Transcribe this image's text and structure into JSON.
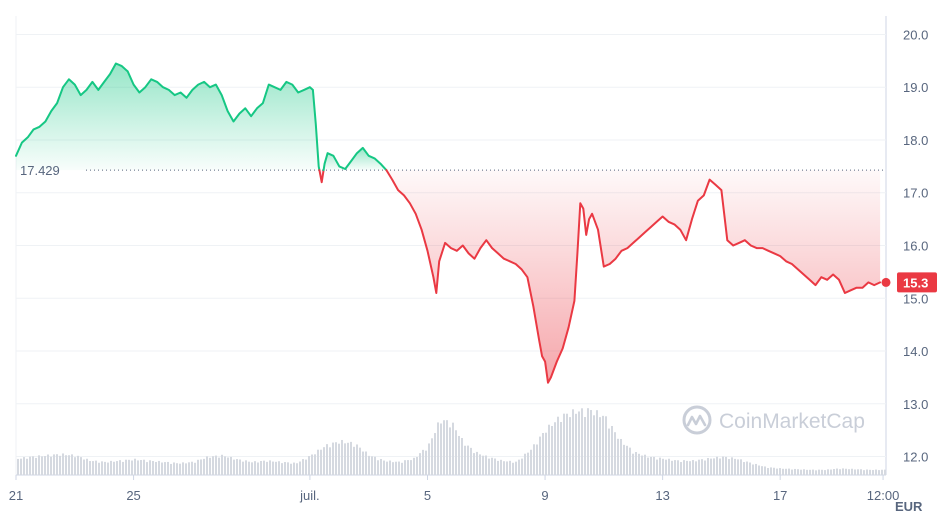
{
  "chart_data": {
    "type": "line",
    "unit": "EUR",
    "y_ticks": [
      "20.0",
      "19.0",
      "18.0",
      "17.0",
      "16.0",
      "15.0",
      "14.0",
      "13.0",
      "12.0"
    ],
    "ylim": [
      11.65,
      20.35
    ],
    "x_ticks": [
      "21",
      "25",
      "juil.",
      "5",
      "9",
      "13",
      "17",
      "12:00"
    ],
    "x_tick_days": [
      0,
      4,
      10,
      14,
      18,
      22,
      26,
      29.5
    ],
    "xlim": [
      0,
      29.6
    ],
    "reference_value": 17.429,
    "reference_label": "17.429",
    "current_price": 15.3,
    "current_label": "15.3",
    "up_color": "#16c784",
    "down_color": "#ea3943",
    "watermark": "CoinMarketCap",
    "series": [
      {
        "points": [
          [
            0.0,
            17.7
          ],
          [
            0.2,
            17.95
          ],
          [
            0.4,
            18.05
          ],
          [
            0.6,
            18.2
          ],
          [
            0.8,
            18.25
          ],
          [
            1.0,
            18.35
          ],
          [
            1.2,
            18.55
          ],
          [
            1.4,
            18.7
          ],
          [
            1.6,
            19.0
          ],
          [
            1.8,
            19.15
          ],
          [
            2.0,
            19.05
          ],
          [
            2.2,
            18.85
          ],
          [
            2.4,
            18.95
          ],
          [
            2.6,
            19.1
          ],
          [
            2.8,
            18.95
          ],
          [
            3.0,
            19.1
          ],
          [
            3.2,
            19.25
          ],
          [
            3.4,
            19.45
          ],
          [
            3.6,
            19.4
          ],
          [
            3.8,
            19.3
          ],
          [
            4.0,
            19.05
          ],
          [
            4.2,
            18.9
          ],
          [
            4.4,
            19.0
          ],
          [
            4.6,
            19.15
          ],
          [
            4.8,
            19.1
          ],
          [
            5.0,
            19.0
          ],
          [
            5.2,
            18.95
          ],
          [
            5.4,
            18.85
          ],
          [
            5.6,
            18.9
          ],
          [
            5.8,
            18.8
          ],
          [
            6.0,
            18.95
          ],
          [
            6.2,
            19.05
          ],
          [
            6.4,
            19.1
          ],
          [
            6.6,
            19.0
          ],
          [
            6.8,
            19.05
          ],
          [
            7.0,
            18.85
          ],
          [
            7.2,
            18.55
          ],
          [
            7.4,
            18.35
          ],
          [
            7.6,
            18.5
          ],
          [
            7.8,
            18.6
          ],
          [
            8.0,
            18.45
          ],
          [
            8.2,
            18.6
          ],
          [
            8.4,
            18.7
          ],
          [
            8.6,
            19.05
          ],
          [
            8.8,
            19.0
          ],
          [
            9.0,
            18.95
          ],
          [
            9.2,
            19.1
          ],
          [
            9.4,
            19.05
          ],
          [
            9.6,
            18.9
          ],
          [
            9.8,
            18.95
          ],
          [
            10.0,
            19.0
          ],
          [
            10.1,
            18.95
          ],
          [
            10.2,
            18.3
          ],
          [
            10.3,
            17.5
          ],
          [
            10.4,
            17.2
          ],
          [
            10.5,
            17.55
          ],
          [
            10.6,
            17.75
          ],
          [
            10.8,
            17.7
          ],
          [
            11.0,
            17.5
          ],
          [
            11.2,
            17.45
          ],
          [
            11.4,
            17.6
          ],
          [
            11.6,
            17.75
          ],
          [
            11.8,
            17.85
          ],
          [
            12.0,
            17.7
          ],
          [
            12.2,
            17.65
          ],
          [
            12.4,
            17.55
          ],
          [
            12.6,
            17.43
          ],
          [
            12.8,
            17.25
          ],
          [
            13.0,
            17.05
          ],
          [
            13.2,
            16.95
          ],
          [
            13.4,
            16.8
          ],
          [
            13.6,
            16.6
          ],
          [
            13.8,
            16.3
          ],
          [
            14.0,
            15.9
          ],
          [
            14.2,
            15.4
          ],
          [
            14.3,
            15.1
          ],
          [
            14.4,
            15.7
          ],
          [
            14.6,
            16.05
          ],
          [
            14.8,
            15.95
          ],
          [
            15.0,
            15.9
          ],
          [
            15.2,
            16.0
          ],
          [
            15.4,
            15.85
          ],
          [
            15.6,
            15.75
          ],
          [
            15.8,
            15.95
          ],
          [
            16.0,
            16.1
          ],
          [
            16.2,
            15.95
          ],
          [
            16.4,
            15.85
          ],
          [
            16.6,
            15.75
          ],
          [
            16.8,
            15.7
          ],
          [
            17.0,
            15.65
          ],
          [
            17.2,
            15.55
          ],
          [
            17.4,
            15.4
          ],
          [
            17.6,
            14.85
          ],
          [
            17.8,
            14.2
          ],
          [
            17.9,
            13.9
          ],
          [
            18.0,
            13.8
          ],
          [
            18.1,
            13.4
          ],
          [
            18.2,
            13.5
          ],
          [
            18.4,
            13.8
          ],
          [
            18.6,
            14.05
          ],
          [
            18.8,
            14.45
          ],
          [
            19.0,
            14.95
          ],
          [
            19.1,
            15.85
          ],
          [
            19.2,
            16.8
          ],
          [
            19.3,
            16.7
          ],
          [
            19.4,
            16.2
          ],
          [
            19.5,
            16.5
          ],
          [
            19.6,
            16.6
          ],
          [
            19.8,
            16.3
          ],
          [
            20.0,
            15.6
          ],
          [
            20.2,
            15.65
          ],
          [
            20.4,
            15.75
          ],
          [
            20.6,
            15.9
          ],
          [
            20.8,
            15.95
          ],
          [
            21.0,
            16.05
          ],
          [
            21.2,
            16.15
          ],
          [
            21.4,
            16.25
          ],
          [
            21.6,
            16.35
          ],
          [
            21.8,
            16.45
          ],
          [
            22.0,
            16.55
          ],
          [
            22.2,
            16.45
          ],
          [
            22.4,
            16.4
          ],
          [
            22.6,
            16.3
          ],
          [
            22.8,
            16.1
          ],
          [
            23.0,
            16.5
          ],
          [
            23.2,
            16.85
          ],
          [
            23.4,
            16.95
          ],
          [
            23.6,
            17.25
          ],
          [
            23.8,
            17.15
          ],
          [
            24.0,
            17.05
          ],
          [
            24.2,
            16.1
          ],
          [
            24.4,
            16.0
          ],
          [
            24.6,
            16.05
          ],
          [
            24.8,
            16.1
          ],
          [
            25.0,
            16.0
          ],
          [
            25.2,
            15.95
          ],
          [
            25.4,
            15.95
          ],
          [
            25.6,
            15.9
          ],
          [
            25.8,
            15.85
          ],
          [
            26.0,
            15.8
          ],
          [
            26.2,
            15.7
          ],
          [
            26.4,
            15.65
          ],
          [
            26.6,
            15.55
          ],
          [
            26.8,
            15.45
          ],
          [
            27.0,
            15.35
          ],
          [
            27.2,
            15.25
          ],
          [
            27.4,
            15.4
          ],
          [
            27.6,
            15.35
          ],
          [
            27.8,
            15.45
          ],
          [
            28.0,
            15.35
          ],
          [
            28.2,
            15.1
          ],
          [
            28.4,
            15.15
          ],
          [
            28.6,
            15.2
          ],
          [
            28.8,
            15.2
          ],
          [
            29.0,
            15.3
          ],
          [
            29.2,
            15.25
          ],
          [
            29.4,
            15.3
          ]
        ]
      }
    ],
    "volume_profile": [
      [
        0.0,
        0.25
      ],
      [
        0.5,
        0.28
      ],
      [
        1.0,
        0.3
      ],
      [
        1.5,
        0.32
      ],
      [
        2.0,
        0.3
      ],
      [
        2.5,
        0.22
      ],
      [
        3.0,
        0.2
      ],
      [
        3.5,
        0.22
      ],
      [
        4.0,
        0.24
      ],
      [
        4.5,
        0.22
      ],
      [
        5.0,
        0.2
      ],
      [
        5.5,
        0.18
      ],
      [
        6.0,
        0.2
      ],
      [
        6.5,
        0.28
      ],
      [
        7.0,
        0.3
      ],
      [
        7.5,
        0.24
      ],
      [
        8.0,
        0.2
      ],
      [
        8.5,
        0.22
      ],
      [
        9.0,
        0.2
      ],
      [
        9.5,
        0.18
      ],
      [
        10.0,
        0.3
      ],
      [
        10.5,
        0.45
      ],
      [
        11.0,
        0.52
      ],
      [
        11.5,
        0.48
      ],
      [
        12.0,
        0.3
      ],
      [
        12.5,
        0.22
      ],
      [
        13.0,
        0.2
      ],
      [
        13.5,
        0.25
      ],
      [
        14.0,
        0.45
      ],
      [
        14.4,
        0.85
      ],
      [
        14.8,
        0.8
      ],
      [
        15.2,
        0.5
      ],
      [
        15.6,
        0.35
      ],
      [
        16.0,
        0.28
      ],
      [
        16.5,
        0.22
      ],
      [
        17.0,
        0.2
      ],
      [
        17.5,
        0.4
      ],
      [
        18.0,
        0.7
      ],
      [
        18.5,
        0.9
      ],
      [
        19.0,
        0.98
      ],
      [
        19.5,
        1.0
      ],
      [
        20.0,
        0.9
      ],
      [
        20.5,
        0.55
      ],
      [
        21.0,
        0.35
      ],
      [
        21.5,
        0.28
      ],
      [
        22.0,
        0.25
      ],
      [
        22.5,
        0.22
      ],
      [
        23.0,
        0.22
      ],
      [
        23.5,
        0.25
      ],
      [
        24.0,
        0.28
      ],
      [
        24.5,
        0.25
      ],
      [
        25.0,
        0.18
      ],
      [
        25.5,
        0.12
      ],
      [
        26.0,
        0.1
      ],
      [
        26.5,
        0.09
      ],
      [
        27.0,
        0.08
      ],
      [
        27.5,
        0.08
      ],
      [
        28.0,
        0.1
      ],
      [
        28.5,
        0.09
      ],
      [
        29.0,
        0.08
      ],
      [
        29.5,
        0.08
      ]
    ]
  }
}
